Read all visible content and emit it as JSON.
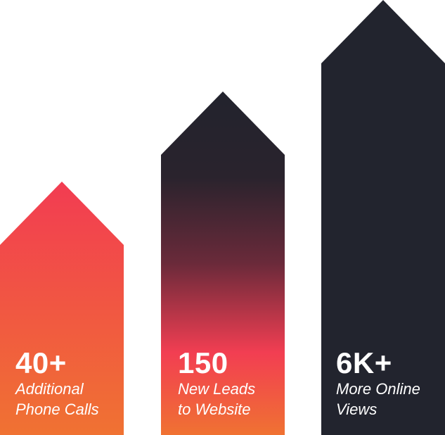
{
  "colors": {
    "red": "#f23e52",
    "orange": "#f07232",
    "dark": "#22242e",
    "text": "#ffffff"
  },
  "stats": [
    {
      "value": "40+",
      "label_line1": "Additional",
      "label_line2": "Phone Calls",
      "level": 1
    },
    {
      "value": "150",
      "label_line1": "New Leads",
      "label_line2": "to Website",
      "level": 2
    },
    {
      "value": "6K+",
      "label_line1": "More Online",
      "label_line2": "Views",
      "level": 3
    }
  ]
}
